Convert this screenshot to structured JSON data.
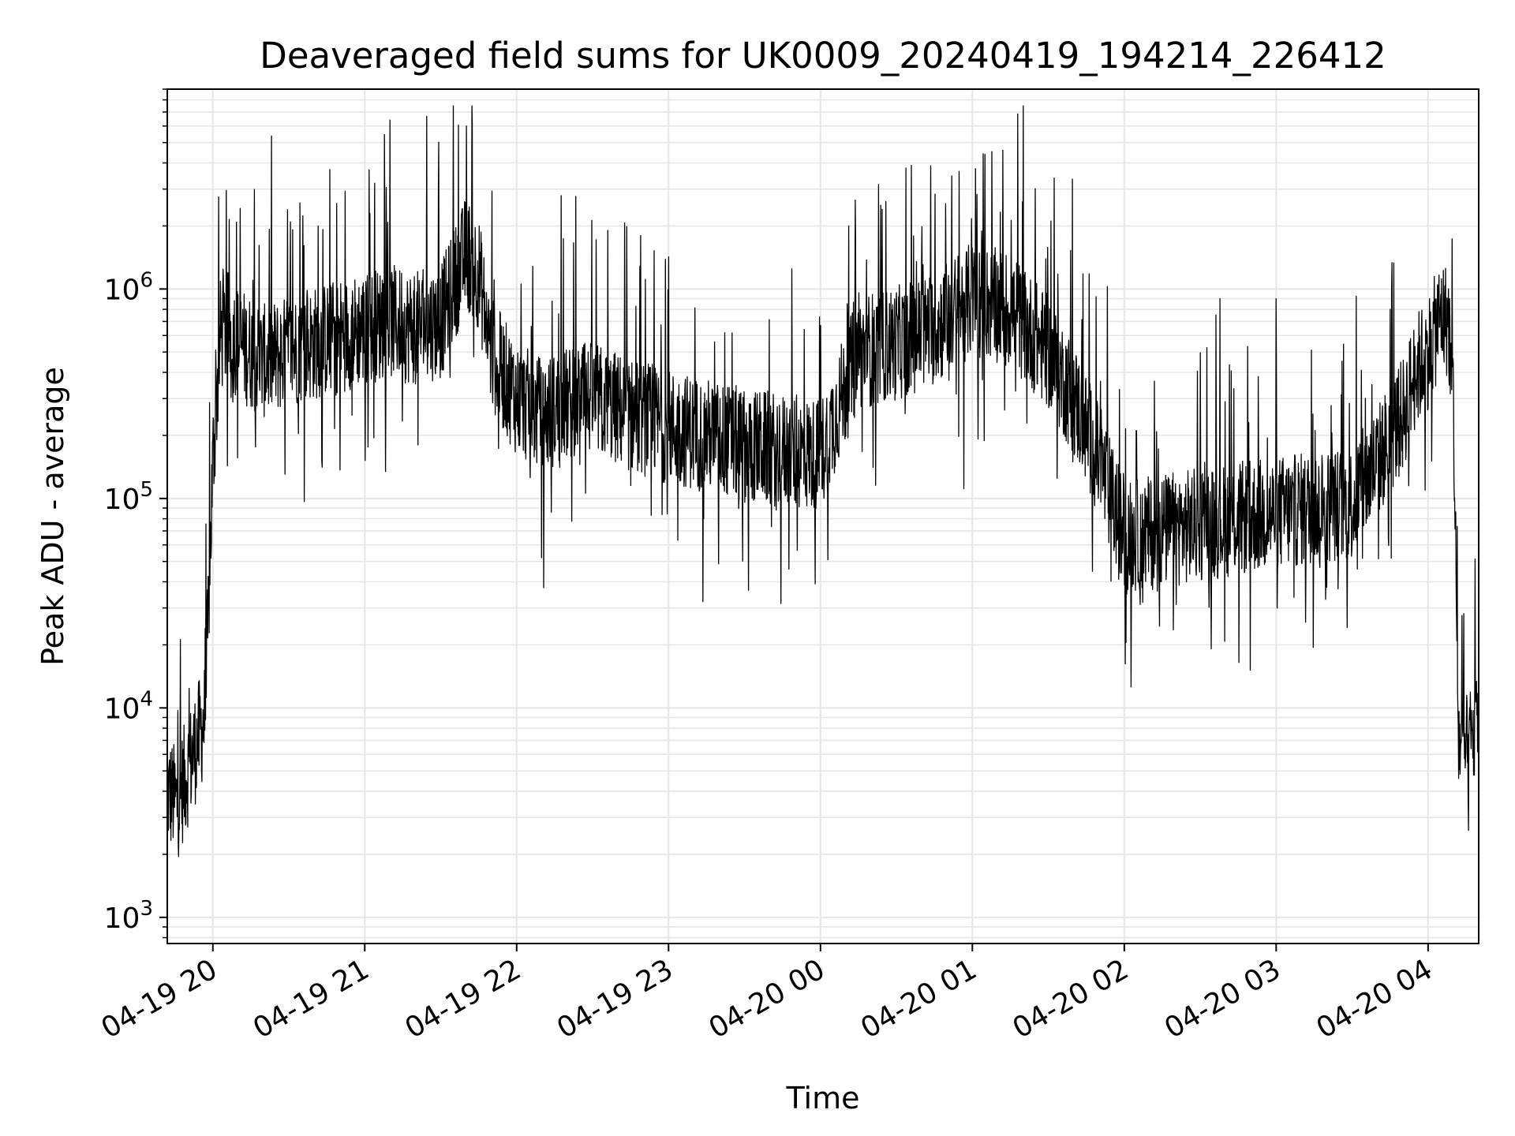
{
  "chart_data": {
    "type": "line",
    "title": "Deaveraged field sums for UK0009_20240419_194214_226412",
    "xlabel": "Time",
    "ylabel": "Peak ADU - average",
    "yscale": "log",
    "ylim": [
      750,
      9000000
    ],
    "xlim": [
      "2024-04-19 19:42",
      "2024-04-20 04:20"
    ],
    "grid": true,
    "line_color": "#000000",
    "grid_color": "#e6e6e6",
    "x_ticks": [
      {
        "t": "2024-04-19 20:00",
        "label": "04-19 20"
      },
      {
        "t": "2024-04-19 21:00",
        "label": "04-19 21"
      },
      {
        "t": "2024-04-19 22:00",
        "label": "04-19 22"
      },
      {
        "t": "2024-04-19 23:00",
        "label": "04-19 23"
      },
      {
        "t": "2024-04-20 00:00",
        "label": "04-20 00"
      },
      {
        "t": "2024-04-20 01:00",
        "label": "04-20 01"
      },
      {
        "t": "2024-04-20 02:00",
        "label": "04-20 02"
      },
      {
        "t": "2024-04-20 03:00",
        "label": "04-20 03"
      },
      {
        "t": "2024-04-20 04:00",
        "label": "04-20 04"
      }
    ],
    "y_ticks": [
      {
        "value": 1000,
        "base": "10",
        "exp": "3"
      },
      {
        "value": 10000,
        "base": "10",
        "exp": "4"
      },
      {
        "value": 100000,
        "base": "10",
        "exp": "5"
      },
      {
        "value": 1000000,
        "base": "10",
        "exp": "6"
      }
    ],
    "series": [
      {
        "x": [
          "2024-04-19 19:42",
          "2024-04-19 19:46",
          "2024-04-19 19:50",
          "2024-04-19 19:54",
          "2024-04-19 19:57",
          "2024-04-19 20:00",
          "2024-04-19 20:03",
          "2024-04-19 20:06",
          "2024-04-19 20:10",
          "2024-04-19 20:15",
          "2024-04-19 20:20",
          "2024-04-19 20:30",
          "2024-04-19 20:40",
          "2024-04-19 20:50",
          "2024-04-19 21:00",
          "2024-04-19 21:10",
          "2024-04-19 21:20",
          "2024-04-19 21:30",
          "2024-04-19 21:40",
          "2024-04-19 21:45",
          "2024-04-19 21:50",
          "2024-04-19 22:00",
          "2024-04-19 22:10",
          "2024-04-19 22:20",
          "2024-04-19 22:30",
          "2024-04-19 22:45",
          "2024-04-19 23:00",
          "2024-04-19 23:15",
          "2024-04-19 23:30",
          "2024-04-19 23:45",
          "2024-04-20 00:00",
          "2024-04-20 00:15",
          "2024-04-20 00:30",
          "2024-04-20 00:45",
          "2024-04-20 01:00",
          "2024-04-20 01:15",
          "2024-04-20 01:30",
          "2024-04-20 01:40",
          "2024-04-20 01:50",
          "2024-04-20 02:00",
          "2024-04-20 02:15",
          "2024-04-20 02:30",
          "2024-04-20 02:45",
          "2024-04-20 03:00",
          "2024-04-20 03:15",
          "2024-04-20 03:30",
          "2024-04-20 03:40",
          "2024-04-20 03:50",
          "2024-04-20 03:55",
          "2024-04-20 04:00",
          "2024-04-20 04:05",
          "2024-04-20 04:08",
          "2024-04-20 04:10",
          "2024-04-20 04:12",
          "2024-04-20 04:15",
          "2024-04-20 04:18",
          "2024-04-20 04:20"
        ],
        "y": [
          4000,
          3500,
          5000,
          7000,
          9000,
          150000,
          600000,
          650000,
          550000,
          500000,
          450000,
          500000,
          550000,
          600000,
          650000,
          700000,
          650000,
          700000,
          1500000,
          1200000,
          500000,
          300000,
          250000,
          280000,
          300000,
          250000,
          220000,
          200000,
          180000,
          170000,
          160000,
          500000,
          550000,
          650000,
          900000,
          800000,
          500000,
          300000,
          150000,
          65000,
          70000,
          75000,
          80000,
          85000,
          90000,
          95000,
          150000,
          250000,
          400000,
          500000,
          750000,
          700000,
          300000,
          7000,
          6000,
          7500,
          9000
        ]
      }
    ]
  }
}
